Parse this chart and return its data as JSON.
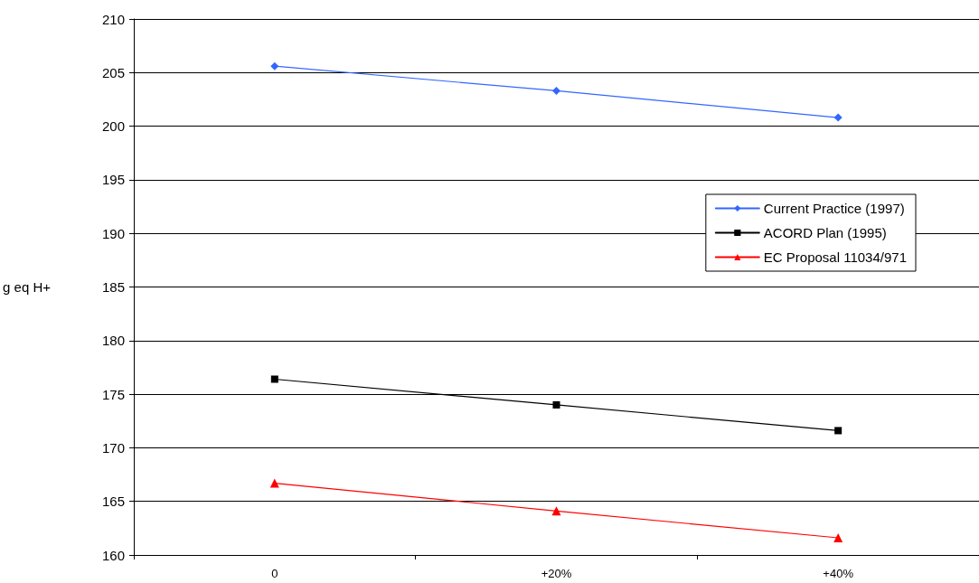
{
  "chart_data": {
    "type": "line",
    "ylabel": "g eq H+",
    "categories": [
      "0",
      "+20%",
      "+40%"
    ],
    "series": [
      {
        "name": "Current Practice (1997)",
        "color": "#3366ff",
        "marker": "diamond",
        "values": [
          205.6,
          203.3,
          200.8
        ]
      },
      {
        "name": "ACORD Plan (1995)",
        "color": "#000000",
        "marker": "square",
        "values": [
          176.4,
          174.0,
          171.6
        ]
      },
      {
        "name": "EC Proposal 11034/971",
        "color": "#ff0000",
        "marker": "triangle",
        "values": [
          166.7,
          164.1,
          161.6
        ]
      }
    ],
    "ylim": [
      160,
      210
    ],
    "yticks": [
      160,
      165,
      170,
      175,
      180,
      185,
      190,
      195,
      200,
      205,
      210
    ],
    "grid": "y",
    "legend": "right",
    "line_style": "solid"
  }
}
